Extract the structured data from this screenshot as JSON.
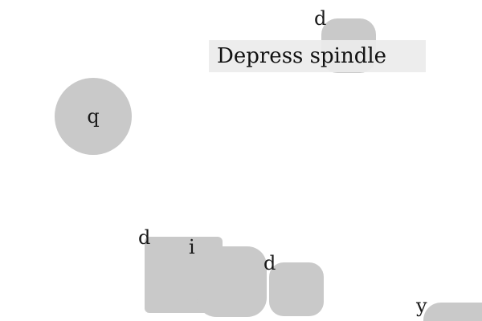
{
  "instruction": {
    "text": "Depress spindle"
  },
  "labels": {
    "top_right_d": "d",
    "circle_q": "q",
    "bottom_left_d": "d",
    "middle_i": "i",
    "right_d": "d",
    "corner_y": "y"
  },
  "colors": {
    "shape_fill": "#c9c9c9",
    "instruction_bg": "#ebebeb",
    "background": "#ffffff"
  }
}
